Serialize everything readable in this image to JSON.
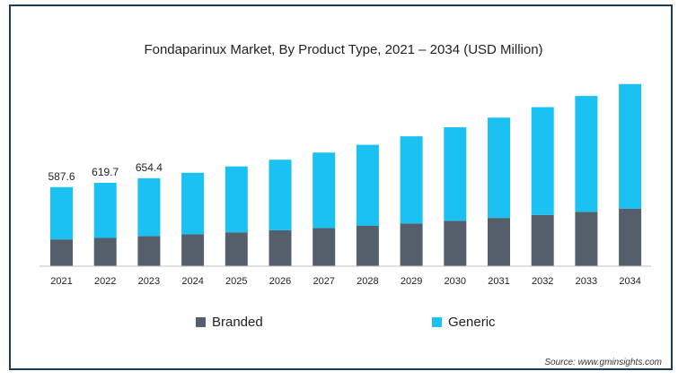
{
  "chart_data": {
    "type": "bar",
    "stacked": true,
    "title": "Fondaparinux Market, By Product Type, 2021 – 2034 (USD Million)",
    "categories": [
      "2021",
      "2022",
      "2023",
      "2024",
      "2025",
      "2026",
      "2027",
      "2028",
      "2029",
      "2030",
      "2031",
      "2032",
      "2033",
      "2034"
    ],
    "series": [
      {
        "name": "Branded",
        "color": "#555f6b",
        "values": [
          199,
          210,
          223,
          237,
          252,
          267,
          283,
          300,
          318,
          338,
          359,
          381,
          404,
          428
        ]
      },
      {
        "name": "Generic",
        "color": "#1ac1f1",
        "values": [
          389,
          410,
          431,
          458,
          490,
          525,
          562,
          603,
          648,
          695,
          746,
          802,
          862,
          927
        ]
      }
    ],
    "data_labels": [
      "587.6",
      "619.7",
      "654.4"
    ],
    "ylim": [
      0,
      1400
    ],
    "grid": false,
    "legend": "bottom"
  },
  "source": "Source: www.gminsights.com"
}
